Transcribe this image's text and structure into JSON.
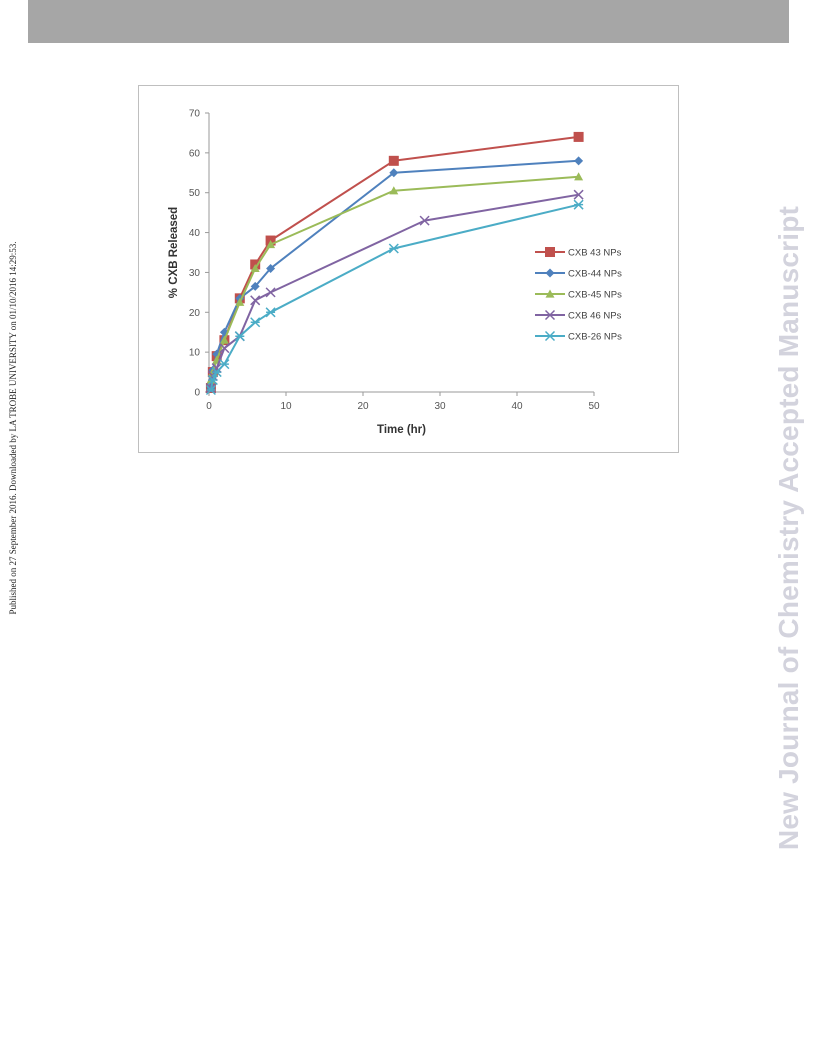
{
  "side_note": "Published on 27 September 2016. Downloaded by LA TROBE UNIVERSITY on 01/10/2016 14:29:53.",
  "watermark": "New Journal of Chemistry Accepted Manuscript",
  "chart_data": {
    "type": "line",
    "xlabel": "Time (hr)",
    "ylabel": "% CXB Released",
    "xlim": [
      0,
      50
    ],
    "ylim": [
      0,
      70
    ],
    "x_ticks": [
      0,
      10,
      20,
      30,
      40,
      50
    ],
    "y_ticks": [
      0,
      10,
      20,
      30,
      40,
      50,
      60,
      70
    ],
    "grid": false,
    "legend_position": "right",
    "series": [
      {
        "name": "CXB 43 NPs",
        "color": "#c0504d",
        "marker": "square",
        "x": [
          0.25,
          0.5,
          1,
          2,
          4,
          6,
          8,
          24,
          48
        ],
        "y": [
          1,
          5,
          9,
          13,
          23.5,
          32,
          38,
          58,
          64
        ]
      },
      {
        "name": "CXB-44 NPs",
        "color": "#4f81bd",
        "marker": "diamond",
        "x": [
          0.25,
          0.5,
          1,
          2,
          4,
          6,
          8,
          24,
          48
        ],
        "y": [
          1,
          5.5,
          9.5,
          15,
          23.5,
          26.5,
          31,
          55,
          58
        ]
      },
      {
        "name": "CXB-45 NPs",
        "color": "#9bbb59",
        "marker": "triangle",
        "x": [
          0.25,
          0.5,
          1,
          2,
          4,
          6,
          8,
          24,
          48
        ],
        "y": [
          3,
          5,
          8,
          13,
          22.5,
          31,
          37,
          50.5,
          54
        ]
      },
      {
        "name": "CXB 46 NPs",
        "color": "#8064a2",
        "marker": "x",
        "x": [
          0.25,
          0.5,
          1,
          2,
          4,
          6,
          8,
          28,
          48
        ],
        "y": [
          1,
          4,
          6,
          11,
          14,
          23,
          25,
          43,
          49.5
        ]
      },
      {
        "name": "CXB-26 NPs",
        "color": "#4bacc6",
        "marker": "star",
        "x": [
          0.25,
          0.5,
          1,
          2,
          4,
          6,
          8,
          24,
          48
        ],
        "y": [
          0.5,
          3,
          5,
          7,
          14,
          17.5,
          20,
          36,
          47
        ]
      }
    ]
  }
}
